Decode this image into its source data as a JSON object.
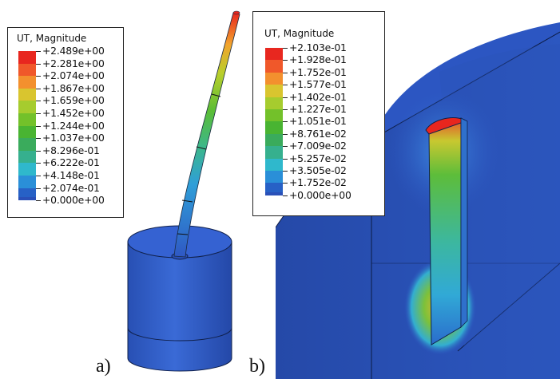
{
  "panel_a": {
    "label": "a)",
    "legend": {
      "title": "UT, Magnitude",
      "entries": [
        {
          "value": "+2.489e+00",
          "color": "#e8271f"
        },
        {
          "value": "+2.281e+00",
          "color": "#f0582a"
        },
        {
          "value": "+2.074e+00",
          "color": "#f3902e"
        },
        {
          "value": "+1.867e+00",
          "color": "#d9c52f"
        },
        {
          "value": "+1.659e+00",
          "color": "#a6cc2e"
        },
        {
          "value": "+1.452e+00",
          "color": "#73c12a"
        },
        {
          "value": "+1.244e+00",
          "color": "#49b432"
        },
        {
          "value": "+1.037e+00",
          "color": "#3aab5c"
        },
        {
          "value": "+8.296e-01",
          "color": "#36b08e"
        },
        {
          "value": "+6.222e-01",
          "color": "#2fb8cc"
        },
        {
          "value": "+4.148e-01",
          "color": "#2a8fd8"
        },
        {
          "value": "+2.074e-01",
          "color": "#2761c6"
        },
        {
          "value": "+0.000e+00",
          "color": null
        }
      ]
    }
  },
  "panel_b": {
    "label": "b)",
    "legend": {
      "title": "UT, Magnitude",
      "entries": [
        {
          "value": "+2.103e-01",
          "color": "#e8271f"
        },
        {
          "value": "+1.928e-01",
          "color": "#f0582a"
        },
        {
          "value": "+1.752e-01",
          "color": "#f3902e"
        },
        {
          "value": "+1.577e-01",
          "color": "#d9c52f"
        },
        {
          "value": "+1.402e-01",
          "color": "#a6cc2e"
        },
        {
          "value": "+1.227e-01",
          "color": "#73c12a"
        },
        {
          "value": "+1.051e-01",
          "color": "#49b432"
        },
        {
          "value": "+8.761e-02",
          "color": "#3aab5c"
        },
        {
          "value": "+7.009e-02",
          "color": "#36b08e"
        },
        {
          "value": "+5.257e-02",
          "color": "#2fb8cc"
        },
        {
          "value": "+3.505e-02",
          "color": "#2a8fd8"
        },
        {
          "value": "+1.752e-02",
          "color": "#2761c6"
        },
        {
          "value": "+0.000e+00",
          "color": null
        }
      ]
    }
  }
}
